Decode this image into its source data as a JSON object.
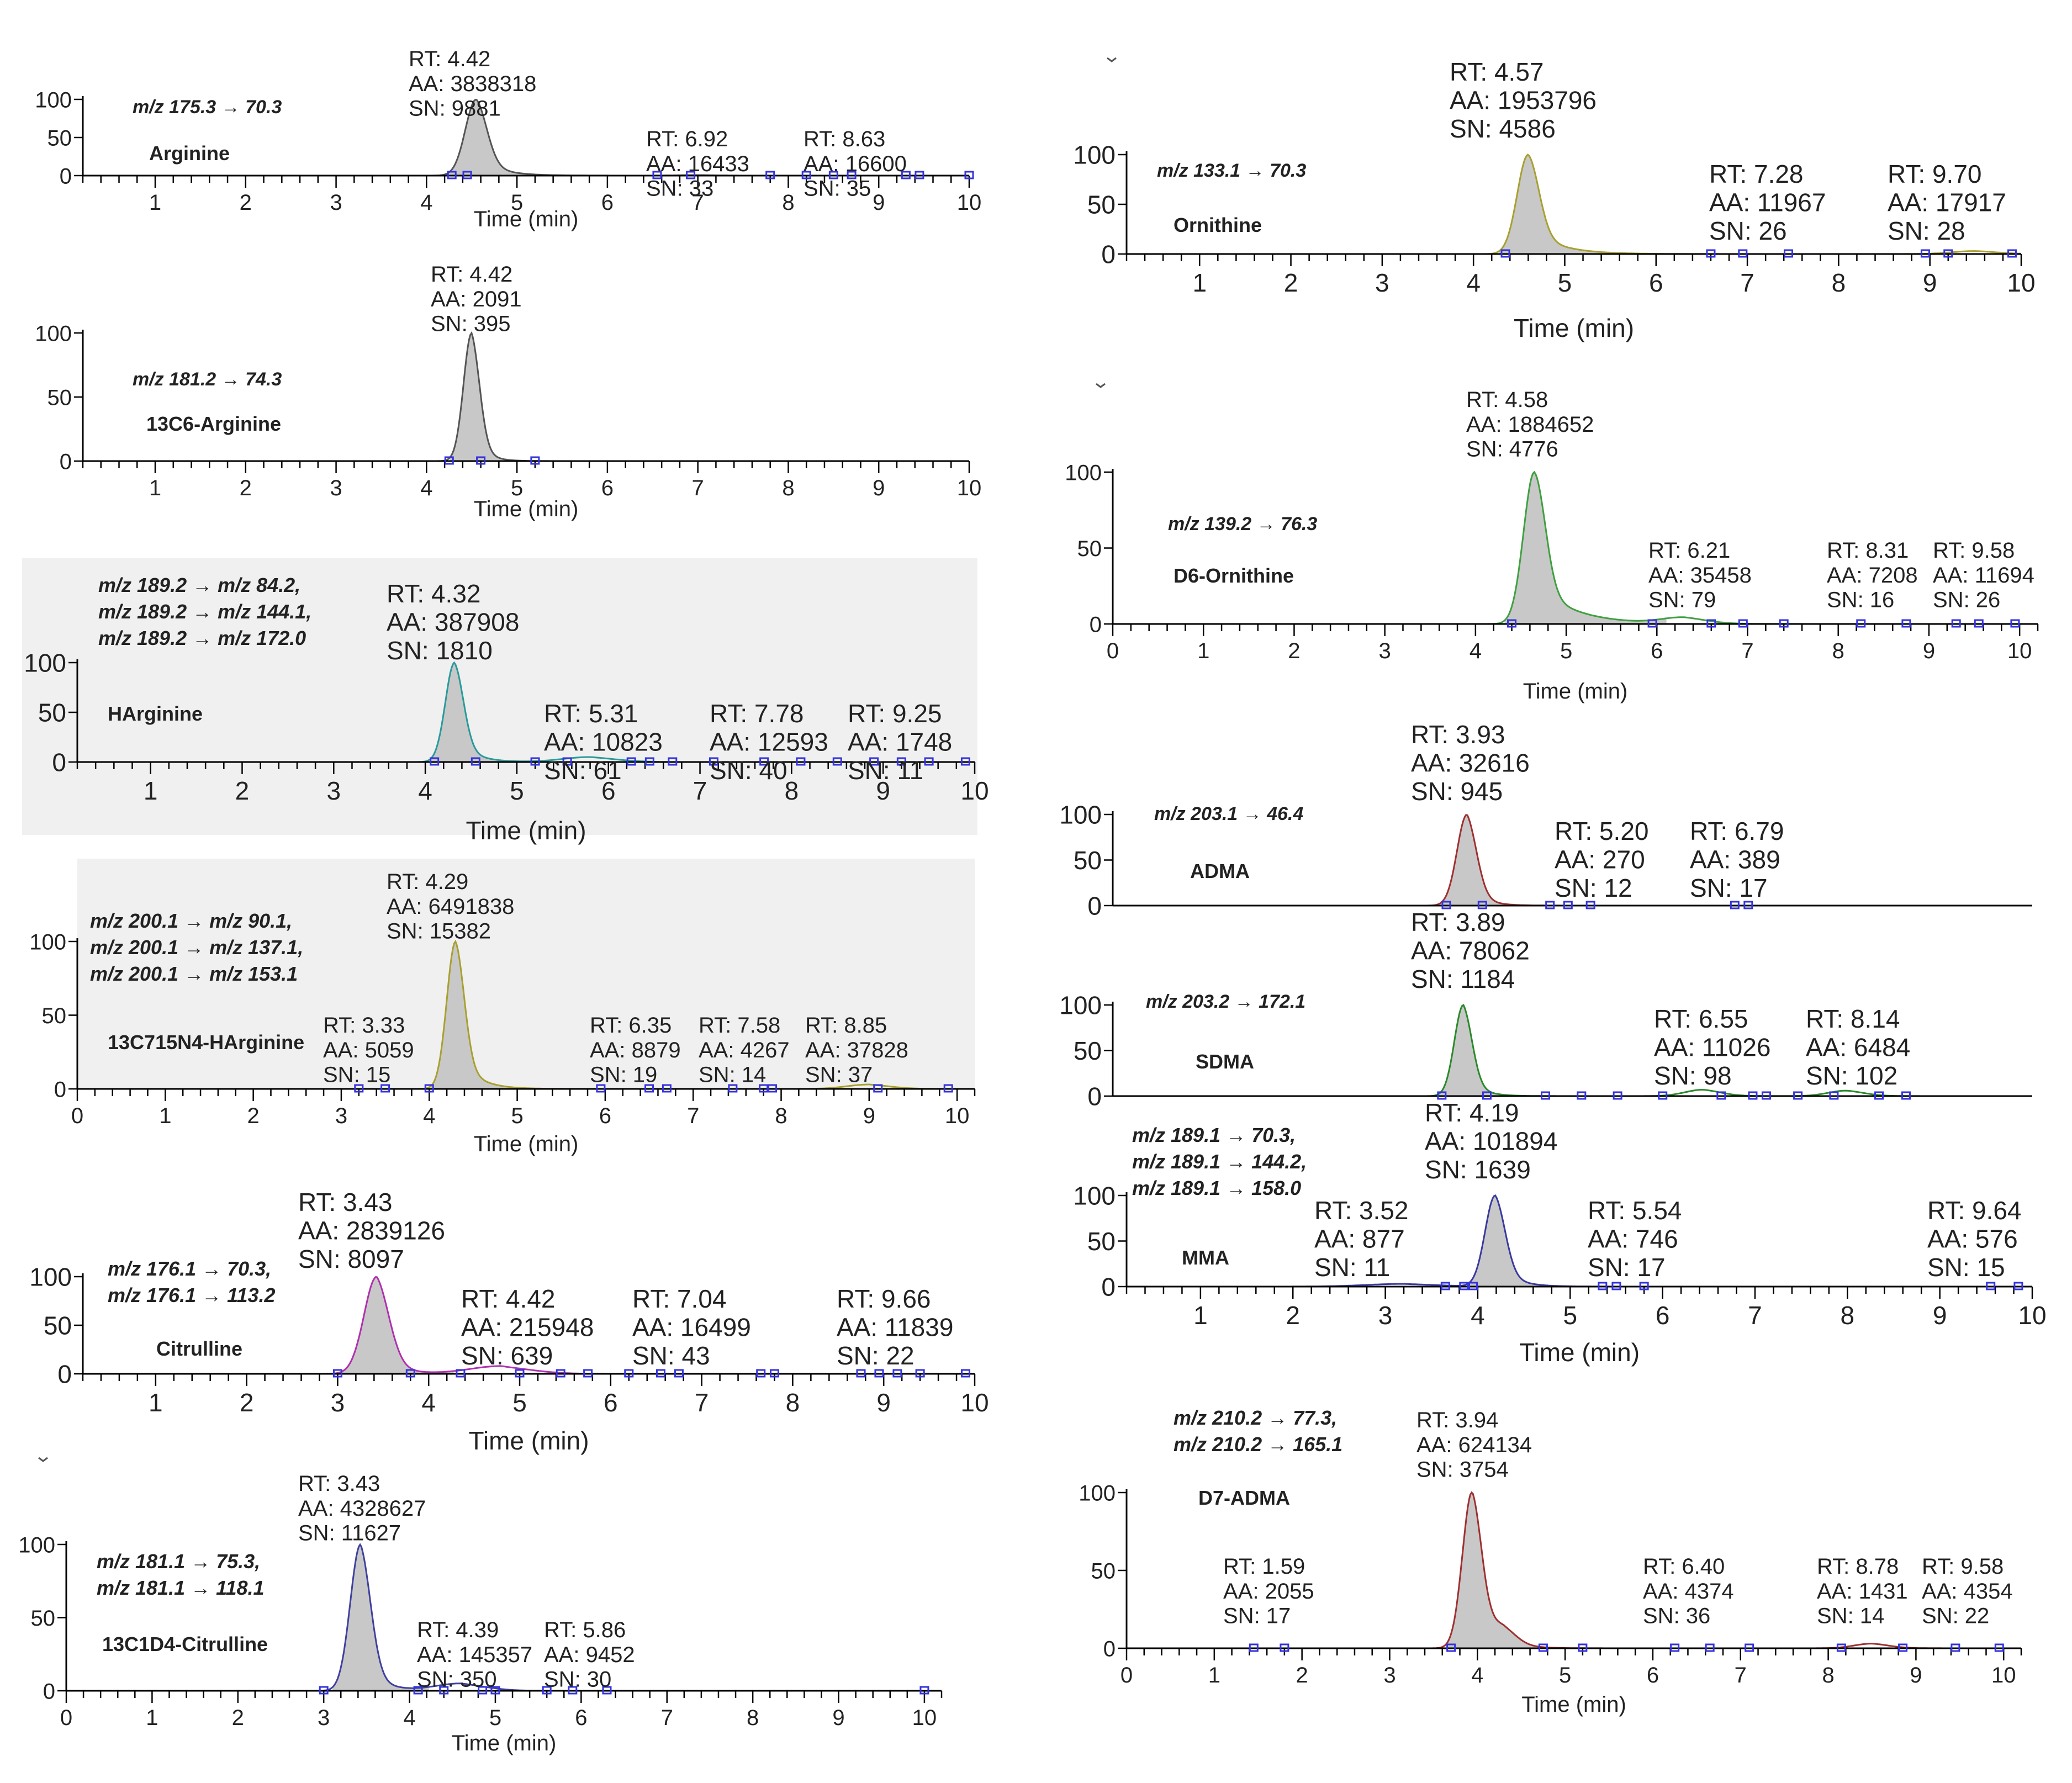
{
  "colors": {
    "axis": "#000000",
    "peak_fill": "#c8c8c8",
    "marker": "#3333dd",
    "panel_shade": "#f0f0f0"
  },
  "chart_data": [
    {
      "type": "line",
      "name": "arginine",
      "transition": "m/z 175.3 → 70.3",
      "compound": "Arginine",
      "xlabel": "Time (min)",
      "ylabel": "",
      "xlim": [
        0.2,
        10
      ],
      "ylim": [
        0,
        100
      ],
      "x_ticks": [
        "1",
        "2",
        "3",
        "4",
        "5",
        "6",
        "7",
        "8",
        "9",
        "10"
      ],
      "y_ticks": [
        "0",
        "50",
        "100"
      ],
      "line_color": "#555555",
      "shaded": false,
      "peaks": [
        {
          "rt": 4.55,
          "height": 100,
          "width": 0.12,
          "tail": 0.22,
          "main": true
        },
        {
          "rt": 7.0,
          "height": 0.6,
          "width": 0.2,
          "tail": 0.1
        }
      ],
      "markers": [
        4.28,
        4.45,
        6.55,
        6.92,
        7.8,
        8.2,
        8.5,
        8.7,
        9.3,
        9.45,
        10.0
      ],
      "peak_labels": [
        {
          "rt": "RT: 4.42",
          "aa": "AA: 3838318",
          "sn": "SN: 9881"
        },
        {
          "rt": "RT: 6.92",
          "aa": "AA: 16433",
          "sn": "SN: 33"
        },
        {
          "rt": "RT: 8.63",
          "aa": "AA: 16600",
          "sn": "SN: 35"
        }
      ]
    },
    {
      "type": "line",
      "name": "13c6-arginine",
      "transition": "m/z 181.2 → 74.3",
      "compound": "13C6-Arginine",
      "xlabel": "Time (min)",
      "ylabel": "",
      "xlim": [
        0.2,
        10
      ],
      "ylim": [
        0,
        100
      ],
      "x_ticks": [
        "1",
        "2",
        "3",
        "4",
        "5",
        "6",
        "7",
        "8",
        "9",
        "10"
      ],
      "y_ticks": [
        "0",
        "50",
        "100"
      ],
      "line_color": "#555555",
      "shaded": false,
      "peaks": [
        {
          "rt": 4.5,
          "height": 100,
          "width": 0.09,
          "tail": 0.12,
          "main": true
        }
      ],
      "markers": [
        4.25,
        4.6,
        5.2
      ],
      "peak_labels": [
        {
          "rt": "RT: 4.42",
          "aa": "AA: 2091",
          "sn": "SN: 395"
        }
      ]
    },
    {
      "type": "line",
      "name": "harginine",
      "transition_lines": [
        "m/z 189.2 → m/z 84.2,",
        "m/z 189.2 → m/z 144.1,",
        "m/z 189.2 → m/z 172.0"
      ],
      "compound": "HArginine",
      "xlabel": "Time (min)",
      "ylabel": "",
      "xlim": [
        0.2,
        10
      ],
      "ylim": [
        0,
        100
      ],
      "x_ticks": [
        "1",
        "2",
        "3",
        "4",
        "5",
        "6",
        "7",
        "8",
        "9",
        "10"
      ],
      "y_ticks": [
        "0",
        "50",
        "100"
      ],
      "line_color": "#2a9a9a",
      "shaded": true,
      "peaks": [
        {
          "rt": 4.32,
          "height": 100,
          "width": 0.1,
          "tail": 0.18,
          "main": true
        },
        {
          "rt": 5.8,
          "height": 5,
          "width": 0.3,
          "tail": 0.2
        }
      ],
      "markers": [
        4.1,
        4.55,
        5.2,
        5.55,
        6.25,
        6.45,
        6.7,
        7.15,
        7.7,
        8.1,
        8.5,
        8.9,
        9.2,
        9.5,
        9.9
      ],
      "peak_labels": [
        {
          "rt": "RT: 4.32",
          "aa": "AA: 387908",
          "sn": "SN: 1810"
        },
        {
          "rt": "RT: 5.31",
          "aa": "AA: 10823",
          "sn": "SN: 61"
        },
        {
          "rt": "RT: 7.78",
          "aa": "AA: 12593",
          "sn": "SN: 40"
        },
        {
          "rt": "RT: 9.25",
          "aa": "AA: 1748",
          "sn": "SN: 11"
        }
      ]
    },
    {
      "type": "line",
      "name": "13c7-15n4-harginine",
      "transition_lines": [
        "m/z 200.1 → m/z 90.1,",
        "m/z 200.1 → m/z 137.1,",
        "m/z 200.1 → m/z 153.1"
      ],
      "compound": "13C715N4-HArginine",
      "xlabel": "Time (min)",
      "ylabel": "",
      "xlim": [
        0,
        10.2
      ],
      "ylim": [
        0,
        100
      ],
      "x_ticks": [
        "0",
        "1",
        "2",
        "3",
        "4",
        "5",
        "6",
        "7",
        "8",
        "9",
        "10"
      ],
      "y_ticks": [
        "0",
        "50",
        "100"
      ],
      "line_color": "#a8a030",
      "shaded": true,
      "peaks": [
        {
          "rt": 4.3,
          "height": 100,
          "width": 0.1,
          "tail": 0.2,
          "main": true
        },
        {
          "rt": 9.0,
          "height": 3,
          "width": 0.25,
          "tail": 0.2
        }
      ],
      "markers": [
        3.2,
        3.5,
        4.0,
        5.95,
        6.5,
        6.7,
        7.45,
        7.8,
        7.9,
        9.1,
        9.9
      ],
      "peak_labels": [
        {
          "rt": "RT: 4.29",
          "aa": "AA: 6491838",
          "sn": "SN: 15382"
        },
        {
          "rt": "RT: 3.33",
          "aa": "AA: 5059",
          "sn": "SN: 15"
        },
        {
          "rt": "RT: 6.35",
          "aa": "AA: 8879",
          "sn": "SN: 19"
        },
        {
          "rt": "RT: 7.58",
          "aa": "AA: 4267",
          "sn": "SN: 14"
        },
        {
          "rt": "RT: 8.85",
          "aa": "AA: 37828",
          "sn": "SN: 37"
        }
      ]
    },
    {
      "type": "line",
      "name": "citrulline",
      "transition_lines": [
        "m/z 176.1 → 70.3,",
        "m/z 176.1 → 113.2"
      ],
      "compound": "Citrulline",
      "xlabel": "Time (min)",
      "ylabel": "",
      "xlim": [
        0.2,
        10
      ],
      "ylim": [
        0,
        100
      ],
      "x_ticks": [
        "1",
        "2",
        "3",
        "4",
        "5",
        "6",
        "7",
        "8",
        "9",
        "10"
      ],
      "y_ticks": [
        "0",
        "50",
        "100"
      ],
      "line_color": "#b030b0",
      "shaded": false,
      "peaks": [
        {
          "rt": 3.43,
          "height": 100,
          "width": 0.14,
          "tail": 0.18,
          "main": true
        },
        {
          "rt": 4.8,
          "height": 8,
          "width": 0.35,
          "tail": 0.15
        }
      ],
      "markers": [
        3.0,
        3.8,
        4.35,
        5.0,
        5.45,
        5.75,
        6.2,
        6.55,
        6.75,
        7.65,
        7.8,
        8.75,
        8.95,
        9.15,
        9.4,
        9.9
      ],
      "peak_labels": [
        {
          "rt": "RT: 3.43",
          "aa": "AA: 2839126",
          "sn": "SN: 8097"
        },
        {
          "rt": "RT: 4.42",
          "aa": "AA: 215948",
          "sn": "SN: 639"
        },
        {
          "rt": "RT: 7.04",
          "aa": "AA: 16499",
          "sn": "SN: 43"
        },
        {
          "rt": "RT: 9.66",
          "aa": "AA: 11839",
          "sn": "SN: 22"
        }
      ]
    },
    {
      "type": "line",
      "name": "13c1d4-citrulline",
      "transition_lines": [
        "m/z 181.1 → 75.3,",
        "m/z 181.1 → 118.1"
      ],
      "compound": "13C1D4-Citrulline",
      "xlabel": "Time (min)",
      "ylabel": "",
      "xlim": [
        0,
        10.2
      ],
      "ylim": [
        0,
        100
      ],
      "x_ticks": [
        "0",
        "1",
        "2",
        "3",
        "4",
        "5",
        "6",
        "7",
        "8",
        "9",
        "10"
      ],
      "y_ticks": [
        "0",
        "50",
        "100"
      ],
      "line_color": "#4040a0",
      "shaded": false,
      "peaks": [
        {
          "rt": 3.43,
          "height": 100,
          "width": 0.12,
          "tail": 0.18,
          "main": true
        },
        {
          "rt": 4.6,
          "height": 5,
          "width": 0.3,
          "tail": 0.2
        }
      ],
      "markers": [
        3.0,
        4.1,
        4.4,
        4.85,
        5.0,
        5.6,
        5.9,
        6.3,
        10.0
      ],
      "peak_labels": [
        {
          "rt": "RT: 3.43",
          "aa": "AA: 4328627",
          "sn": "SN: 11627"
        },
        {
          "rt": "RT: 4.39",
          "aa": "AA: 145357",
          "sn": "SN: 350"
        },
        {
          "rt": "RT: 5.86",
          "aa": "AA: 9452",
          "sn": "SN: 30"
        }
      ]
    },
    {
      "type": "line",
      "name": "ornithine",
      "transition": "m/z 133.1 → 70.3",
      "compound": "Ornithine",
      "xlabel": "Time (min)",
      "ylabel": "",
      "xlim": [
        0.2,
        10
      ],
      "ylim": [
        0,
        100
      ],
      "x_ticks": [
        "1",
        "2",
        "3",
        "4",
        "5",
        "6",
        "7",
        "8",
        "9",
        "10"
      ],
      "y_ticks": [
        "0",
        "50",
        "100"
      ],
      "line_color": "#a8a030",
      "shaded": false,
      "peaks": [
        {
          "rt": 4.6,
          "height": 100,
          "width": 0.12,
          "tail": 0.3,
          "main": true
        },
        {
          "rt": 9.5,
          "height": 3,
          "width": 0.25,
          "tail": 0.2
        }
      ],
      "markers": [
        4.35,
        6.6,
        6.95,
        7.45,
        8.95,
        9.2,
        9.9
      ],
      "peak_labels": [
        {
          "rt": "RT: 4.57",
          "aa": "AA: 1953796",
          "sn": "SN: 4586"
        },
        {
          "rt": "RT: 7.28",
          "aa": "AA: 11967",
          "sn": "SN: 26"
        },
        {
          "rt": "RT: 9.70",
          "aa": "AA: 17917",
          "sn": "SN: 28"
        }
      ]
    },
    {
      "type": "line",
      "name": "d6-ornithine",
      "transition": "m/z 139.2 → 76.3",
      "compound": "D6-Ornithine",
      "xlabel": "Time (min)",
      "ylabel": "",
      "xlim": [
        0,
        10.2
      ],
      "ylim": [
        0,
        100
      ],
      "x_ticks": [
        "0",
        "1",
        "2",
        "3",
        "4",
        "5",
        "6",
        "7",
        "8",
        "9",
        "10"
      ],
      "y_ticks": [
        "0",
        "50",
        "100"
      ],
      "line_color": "#40a040",
      "shaded": false,
      "peaks": [
        {
          "rt": 4.65,
          "height": 100,
          "width": 0.12,
          "tail": 0.4,
          "main": true
        },
        {
          "rt": 6.3,
          "height": 4,
          "width": 0.25,
          "tail": 0.2
        }
      ],
      "markers": [
        4.4,
        5.95,
        6.6,
        6.95,
        7.4,
        8.25,
        8.75,
        9.3,
        9.55,
        9.95
      ],
      "peak_labels": [
        {
          "rt": "RT: 4.58",
          "aa": "AA: 1884652",
          "sn": "SN: 4776"
        },
        {
          "rt": "RT: 6.21",
          "aa": "AA: 35458",
          "sn": "SN: 79"
        },
        {
          "rt": "RT: 8.31",
          "aa": "AA: 7208",
          "sn": "SN: 16"
        },
        {
          "rt": "RT: 9.58",
          "aa": "AA: 11694",
          "sn": "SN: 26"
        }
      ]
    },
    {
      "type": "line",
      "name": "adma",
      "transition": "m/z 203.1 → 46.4",
      "compound": "ADMA",
      "xlabel": "",
      "ylabel": "",
      "xlim": [
        0,
        10.2
      ],
      "ylim": [
        0,
        100
      ],
      "x_ticks": [],
      "y_ticks": [
        "0",
        "50",
        "100"
      ],
      "line_color": "#a03030",
      "shaded": false,
      "peaks": [
        {
          "rt": 3.93,
          "height": 100,
          "width": 0.11,
          "tail": 0.15,
          "main": true
        }
      ],
      "markers": [
        3.7,
        4.1,
        4.85,
        5.05,
        5.3,
        6.9,
        7.05
      ],
      "peak_labels": [
        {
          "rt": "RT: 3.93",
          "aa": "AA: 32616",
          "sn": "SN: 945"
        },
        {
          "rt": "RT: 5.20",
          "aa": "AA: 270",
          "sn": "SN: 12"
        },
        {
          "rt": "RT: 6.79",
          "aa": "AA: 389",
          "sn": "SN: 17"
        }
      ]
    },
    {
      "type": "line",
      "name": "sdma",
      "transition": "m/z 203.2 → 172.1",
      "compound": "SDMA",
      "xlabel": "",
      "ylabel": "",
      "xlim": [
        0,
        10.2
      ],
      "ylim": [
        0,
        100
      ],
      "x_ticks": [],
      "y_ticks": [
        "0",
        "50",
        "100"
      ],
      "line_color": "#2a8a2a",
      "shaded": false,
      "peaks": [
        {
          "rt": 3.89,
          "height": 100,
          "width": 0.1,
          "tail": 0.15,
          "main": true
        },
        {
          "rt": 6.55,
          "height": 7,
          "width": 0.2,
          "tail": 0.2
        },
        {
          "rt": 8.14,
          "height": 6,
          "width": 0.2,
          "tail": 0.2
        }
      ],
      "markers": [
        3.65,
        4.15,
        4.8,
        5.2,
        5.6,
        6.1,
        6.75,
        7.1,
        7.25,
        7.6,
        8.0,
        8.5,
        8.8
      ],
      "peak_labels": [
        {
          "rt": "RT: 3.89",
          "aa": "AA: 78062",
          "sn": "SN: 1184"
        },
        {
          "rt": "RT: 6.55",
          "aa": "AA: 11026",
          "sn": "SN: 98"
        },
        {
          "rt": "RT: 8.14",
          "aa": "AA: 6484",
          "sn": "SN: 102"
        }
      ]
    },
    {
      "type": "line",
      "name": "mma",
      "transition_lines": [
        "m/z 189.1 → 70.3,",
        "m/z 189.1 → 144.2,",
        "m/z 189.1 → 158.0"
      ],
      "compound": "MMA",
      "xlabel": "Time (min)",
      "ylabel": "",
      "xlim": [
        0.2,
        10
      ],
      "ylim": [
        0,
        100
      ],
      "x_ticks": [
        "1",
        "2",
        "3",
        "4",
        "5",
        "6",
        "7",
        "8",
        "9",
        "10"
      ],
      "y_ticks": [
        "0",
        "50",
        "100"
      ],
      "line_color": "#3a3aa0",
      "shaded": false,
      "peaks": [
        {
          "rt": 4.19,
          "height": 100,
          "width": 0.11,
          "tail": 0.18,
          "main": true
        },
        {
          "rt": 3.2,
          "height": 3,
          "width": 0.4,
          "tail": 0.2
        }
      ],
      "markers": [
        3.65,
        3.85,
        3.95,
        5.35,
        5.5,
        5.8,
        9.55,
        9.85
      ],
      "peak_labels": [
        {
          "rt": "RT: 4.19",
          "aa": "AA: 101894",
          "sn": "SN: 1639"
        },
        {
          "rt": "RT: 3.52",
          "aa": "AA: 877",
          "sn": "SN: 11"
        },
        {
          "rt": "RT: 5.54",
          "aa": "AA: 746",
          "sn": "SN: 17"
        },
        {
          "rt": "RT: 9.64",
          "aa": "AA: 576",
          "sn": "SN: 15"
        }
      ]
    },
    {
      "type": "line",
      "name": "d7-adma",
      "transition_lines": [
        "m/z 210.2 → 77.3,",
        "m/z 210.2 → 165.1"
      ],
      "compound": "D7-ADMA",
      "xlabel": "Time (min)",
      "ylabel": "",
      "xlim": [
        0,
        10.2
      ],
      "ylim": [
        0,
        100
      ],
      "x_ticks": [
        "0",
        "1",
        "2",
        "3",
        "4",
        "5",
        "6",
        "7",
        "8",
        "9",
        "10"
      ],
      "y_ticks": [
        "0",
        "50",
        "100"
      ],
      "line_color": "#a03030",
      "shaded": false,
      "peaks": [
        {
          "rt": 3.94,
          "height": 100,
          "width": 0.11,
          "tail": 0.2,
          "main": true
        },
        {
          "rt": 4.3,
          "height": 10,
          "width": 0.15,
          "tail": 0.15
        },
        {
          "rt": 8.5,
          "height": 3,
          "width": 0.2,
          "tail": 0.2
        }
      ],
      "markers": [
        1.45,
        1.8,
        3.7,
        4.75,
        5.2,
        6.25,
        6.65,
        7.1,
        8.15,
        8.85,
        9.45,
        9.95
      ],
      "peak_labels": [
        {
          "rt": "RT: 3.94",
          "aa": "AA: 624134",
          "sn": "SN: 3754"
        },
        {
          "rt": "RT: 1.59",
          "aa": "AA: 2055",
          "sn": "SN: 17"
        },
        {
          "rt": "RT: 6.40",
          "aa": "AA: 4374",
          "sn": "SN: 36"
        },
        {
          "rt": "RT: 8.78",
          "aa": "AA: 1431",
          "sn": "SN: 14"
        },
        {
          "rt": "RT: 9.58",
          "aa": "AA: 4354",
          "sn": "SN: 22"
        }
      ]
    }
  ]
}
